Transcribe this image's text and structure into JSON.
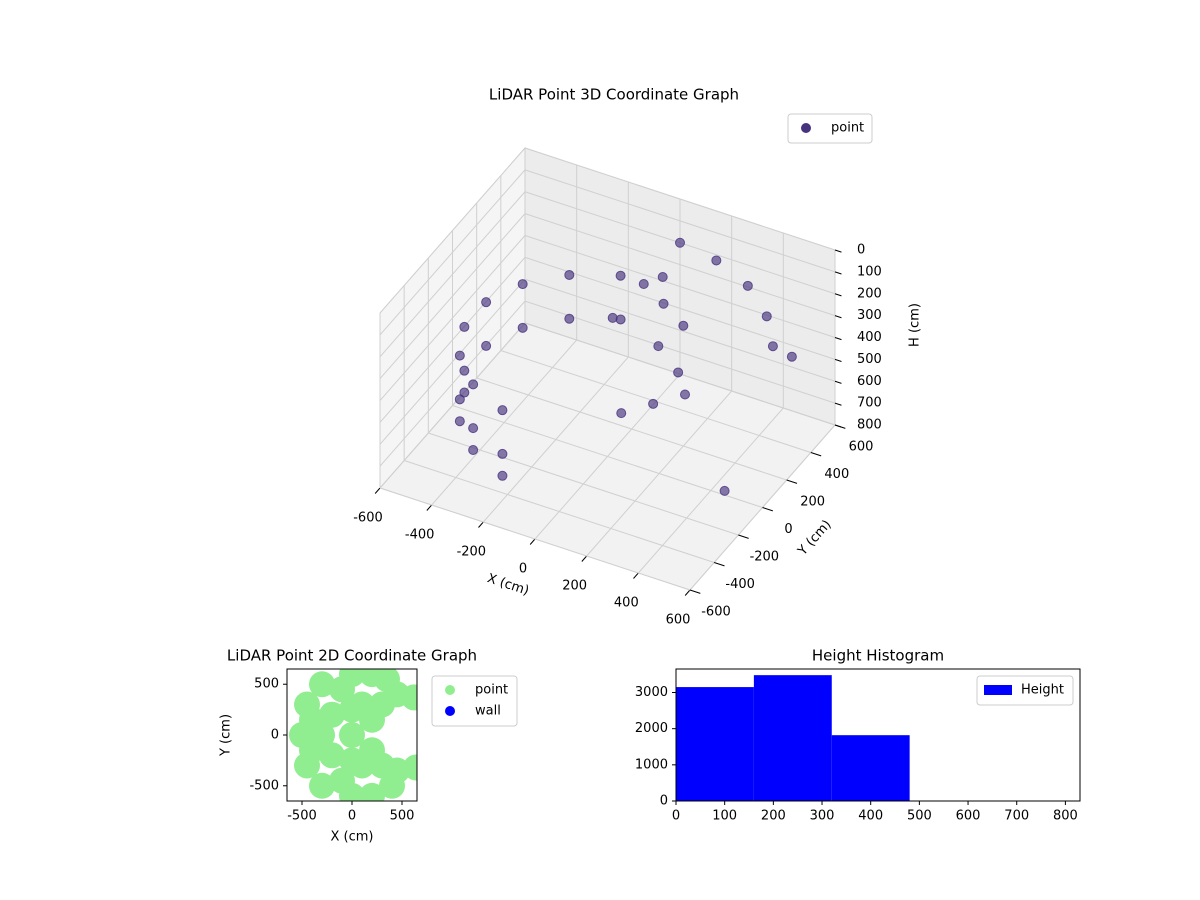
{
  "chart_data": [
    {
      "type": "scatter3d",
      "title": "LiDAR Point 3D Coordinate Graph",
      "xlabel": "X (cm)",
      "ylabel": "Y (cm)",
      "zlabel": "H (cm)",
      "xlim": [
        -600,
        600
      ],
      "ylim": [
        -600,
        600
      ],
      "zlim": [
        800,
        0
      ],
      "xticks": [
        -600,
        -400,
        -200,
        0,
        200,
        400,
        600
      ],
      "yticks": [
        -600,
        -400,
        -200,
        0,
        200,
        400,
        600
      ],
      "zticks": [
        0,
        100,
        200,
        300,
        400,
        500,
        600,
        700,
        800
      ],
      "grid": true,
      "legend": "upper right",
      "series": [
        {
          "name": "point",
          "color": "#46327e",
          "x": [
            -178,
            -334,
            -450,
            -512,
            -512,
            -450,
            -334,
            -178,
            -178,
            -334,
            -450,
            -512,
            -512,
            -450,
            -334,
            -178,
            -512,
            -450,
            -334,
            -178,
            0,
            100,
            200,
            50,
            150,
            -50,
            250,
            300,
            200,
            100,
            0,
            150,
            300,
            420,
            500,
            550,
            500
          ],
          "y": [
            489,
            398,
            260,
            90,
            -90,
            -260,
            -398,
            -489,
            489,
            398,
            260,
            90,
            -90,
            -260,
            -398,
            -489,
            -90,
            -260,
            -398,
            -489,
            300,
            250,
            200,
            350,
            100,
            150,
            50,
            0,
            -50,
            -100,
            600,
            580,
            520,
            420,
            300,
            350,
            -100
          ],
          "z": [
            350,
            350,
            350,
            350,
            350,
            350,
            350,
            350,
            550,
            550,
            550,
            550,
            550,
            550,
            550,
            550,
            650,
            650,
            650,
            650,
            200,
            220,
            250,
            180,
            300,
            280,
            350,
            400,
            450,
            500,
            200,
            210,
            230,
            260,
            290,
            350,
            700
          ]
        }
      ]
    },
    {
      "type": "scatter",
      "title": "LiDAR Point 2D Coordinate Graph",
      "xlabel": "X (cm)",
      "ylabel": "Y (cm)",
      "xlim": [
        -650,
        650
      ],
      "ylim": [
        -650,
        650
      ],
      "xticks": [
        -500,
        0,
        500
      ],
      "yticks": [
        -500,
        0,
        500
      ],
      "legend": "outside upper left",
      "series": [
        {
          "name": "point",
          "color": "#90ee90",
          "x": [
            -450,
            -500,
            -450,
            -300,
            -300,
            0,
            200,
            350,
            0,
            200,
            400,
            -200,
            -200,
            0,
            -300,
            100,
            100,
            300,
            300,
            450,
            450,
            200,
            200,
            -100,
            -100,
            620,
            640,
            -400,
            -400,
            0,
            0
          ],
          "y": [
            300,
            0,
            -300,
            500,
            -500,
            600,
            600,
            550,
            -600,
            -600,
            -500,
            200,
            -200,
            0,
            0,
            300,
            -300,
            300,
            -300,
            400,
            -350,
            150,
            -150,
            450,
            -450,
            370,
            -320,
            150,
            -150,
            250,
            -250
          ]
        },
        {
          "name": "wall",
          "color": "#0000ff",
          "x": [],
          "y": []
        }
      ]
    },
    {
      "type": "histogram",
      "title": "Height Histogram",
      "bins": [
        0,
        160,
        320,
        480,
        640,
        800
      ],
      "values": [
        3150,
        3480,
        1820,
        0,
        0
      ],
      "color": "#0000ff",
      "name": "Height",
      "xlim": [
        0,
        830
      ],
      "ylim": [
        0,
        3650
      ],
      "xticks": [
        0,
        100,
        200,
        300,
        400,
        500,
        600,
        700,
        800
      ],
      "yticks": [
        0,
        1000,
        2000,
        3000
      ],
      "legend": "upper right"
    }
  ]
}
